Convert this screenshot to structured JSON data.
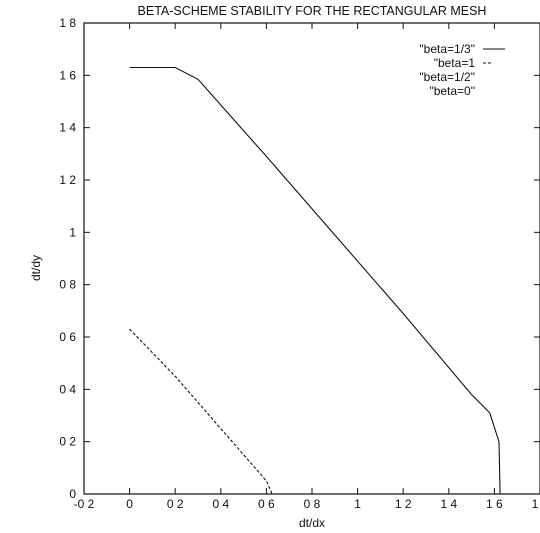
{
  "chart_data": {
    "type": "line",
    "title": "BETA-SCHEME STABILITY FOR THE RECTANGULAR MESH",
    "xlabel": "dt/dx",
    "ylabel": "dt/dy",
    "xlim": [
      -0.2,
      1.8
    ],
    "ylim": [
      0,
      1.8
    ],
    "grid": false,
    "legend_position": "top-right",
    "x_ticks": [
      -0.2,
      0,
      0.2,
      0.4,
      0.6,
      0.8,
      1.0,
      1.2,
      1.4,
      1.6,
      1.8
    ],
    "x_tick_labels": [
      "-0 2",
      "0",
      "0 2",
      "0 4",
      "0 6",
      "0 8",
      "1",
      "1 2",
      "1 4",
      "1 6",
      "1 8"
    ],
    "y_ticks": [
      0,
      0.2,
      0.4,
      0.6,
      0.8,
      1.0,
      1.2,
      1.4,
      1.6,
      1.8
    ],
    "y_tick_labels": [
      "0",
      "0 2",
      "0 4",
      "0 6",
      "0 8",
      "1",
      "1 2",
      "1 4",
      "1 6",
      "1 8"
    ],
    "series": [
      {
        "name": "\"beta=1/3\"",
        "style": "solid",
        "x": [
          0.0,
          0.2,
          0.3,
          0.6,
          0.9,
          1.2,
          1.5,
          1.58,
          1.62,
          1.625
        ],
        "y": [
          1.63,
          1.63,
          1.585,
          1.29,
          0.99,
          0.69,
          0.38,
          0.31,
          0.2,
          0.0
        ]
      },
      {
        "name": "\"beta=1",
        "style": "dashed",
        "x": [
          0.0,
          0.2,
          0.4,
          0.6,
          0.625
        ],
        "y": [
          0.63,
          0.45,
          0.25,
          0.05,
          0.0
        ]
      },
      {
        "name": "\"beta=1/2\"",
        "style": "none",
        "x": [],
        "y": []
      },
      {
        "name": "\"beta=0\"",
        "style": "none",
        "x": [],
        "y": []
      }
    ]
  }
}
